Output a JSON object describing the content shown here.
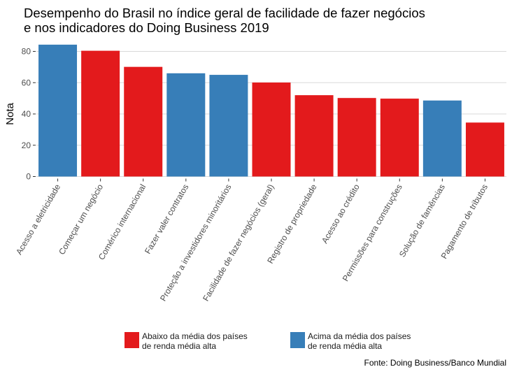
{
  "chart_data": {
    "type": "bar",
    "title_lines": [
      "Desempenho do Brasil no índice geral de facilidade de fazer negócios",
      "e nos indicadores do Doing Business 2019"
    ],
    "xlabel": "",
    "ylabel": "Nota",
    "ylim": [
      0,
      86
    ],
    "yticks": [
      0,
      20,
      40,
      60,
      80
    ],
    "grid": true,
    "categories": [
      "Acesso a eletricidade",
      "Começar um negócio",
      "Comérico internacional",
      "Fazer valer contratos",
      "Proteção a investidores minoritários",
      "Facilidade de fazer negócios (geral)",
      "Registro de propriedade",
      "Acesso ao crédito",
      "Permissões para construções",
      "Solução de famências",
      "Pagamento de tributos"
    ],
    "values": [
      84.3,
      80.4,
      70.1,
      66.0,
      65.0,
      60.1,
      52.0,
      50.2,
      49.8,
      48.6,
      34.5
    ],
    "groups": [
      "acima",
      "abaixo",
      "abaixo",
      "acima",
      "acima",
      "abaixo",
      "abaixo",
      "abaixo",
      "abaixo",
      "acima",
      "abaixo"
    ],
    "legend": {
      "placement": "bottom",
      "entries": [
        {
          "key": "abaixo",
          "label_lines": [
            "Abaixo da média dos países",
            "de renda média alta"
          ],
          "color": "#E31A1C"
        },
        {
          "key": "acima",
          "label_lines": [
            "Acima da média dos países",
            "de renda média alta"
          ],
          "color": "#377EB8"
        }
      ]
    },
    "caption": "Fonte: Doing Business/Banco Mundial"
  },
  "colors": {
    "abaixo": "#E31A1C",
    "acima": "#377EB8",
    "grid": "#d9d9d9",
    "tick_text": "#4d4d4d"
  }
}
